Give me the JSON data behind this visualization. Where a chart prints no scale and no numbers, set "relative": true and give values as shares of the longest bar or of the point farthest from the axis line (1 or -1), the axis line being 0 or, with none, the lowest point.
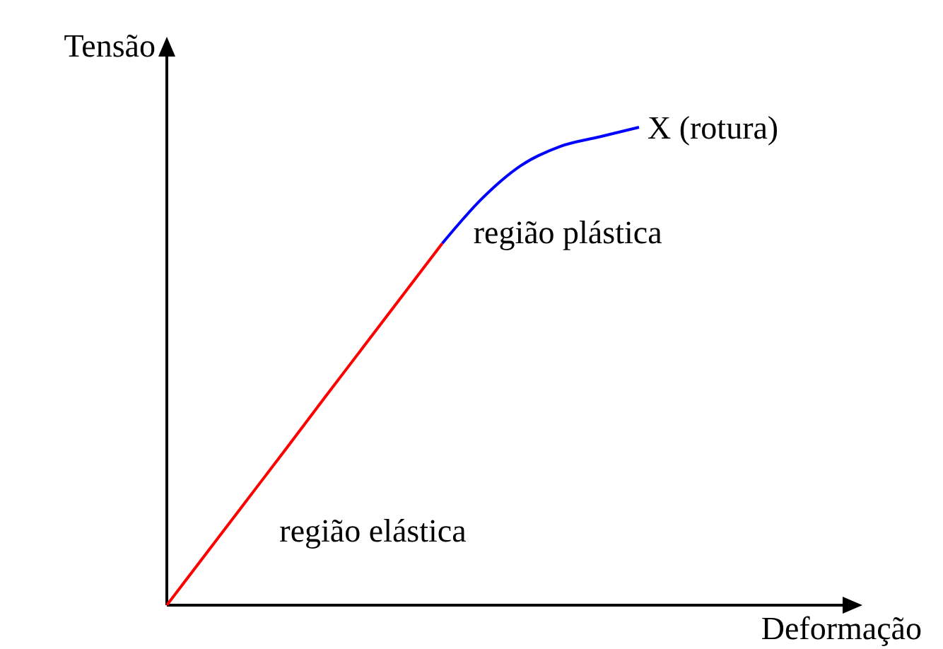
{
  "chart_data": {
    "type": "line",
    "relative": true,
    "xlabel": "Deformação",
    "ylabel": "Tensão",
    "legend": false,
    "marker": "none",
    "line_style": "solid",
    "categories": [
      null,
      null,
      null,
      null,
      null,
      null,
      null,
      null,
      null,
      null,
      null,
      null,
      null
    ],
    "series": [
      {
        "color": "#ff0000",
        "values": [
          0,
          0.108,
          0.216,
          0.324,
          0.433,
          0.541,
          0.649,
          0.757,
          null,
          null,
          null,
          null,
          null
        ]
      },
      {
        "color": "#0000ff",
        "values": [
          null,
          null,
          null,
          null,
          null,
          null,
          null,
          0.757,
          0.85,
          0.92,
          0.96,
          0.98,
          1
        ]
      }
    ],
    "annotations": [
      "X (rotura)",
      "região plástica",
      "região elástica"
    ]
  }
}
